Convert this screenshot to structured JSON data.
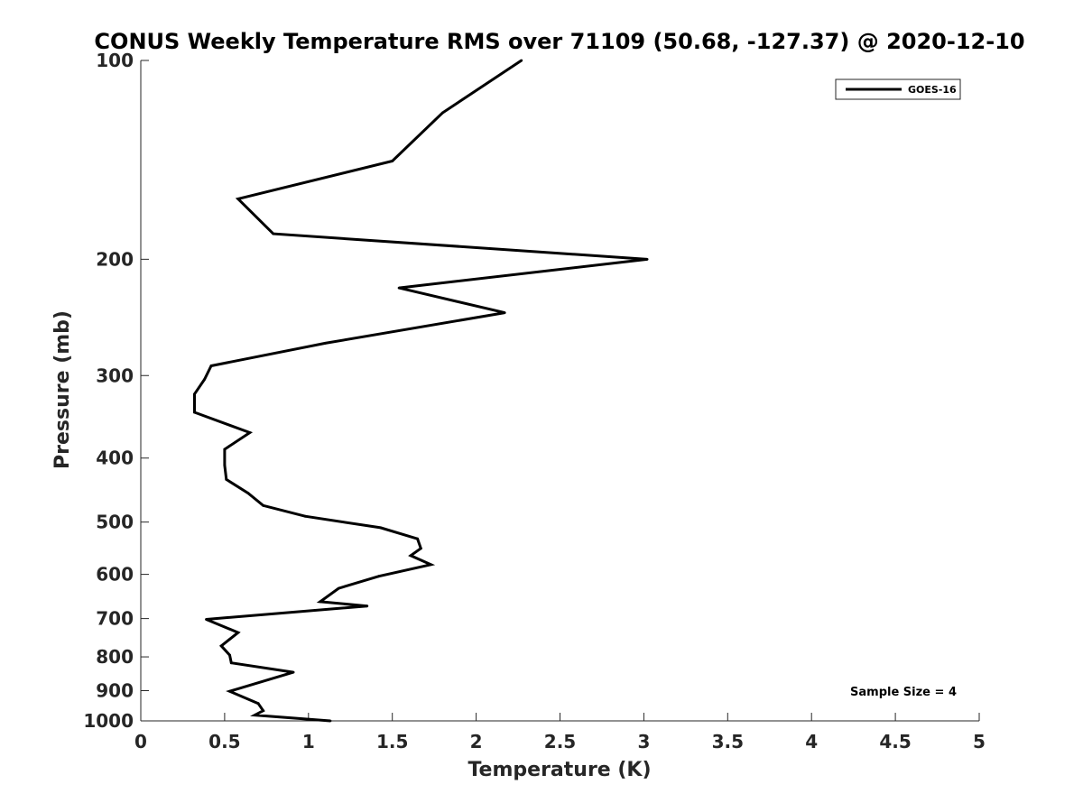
{
  "chart_data": {
    "type": "line",
    "title": "CONUS Weekly Temperature RMS over 71109 (50.68, -127.37) @ 2020-12-10",
    "xlabel": "Temperature (K)",
    "ylabel": "Pressure (mb)",
    "xlim": [
      0,
      5
    ],
    "ylim": [
      1000,
      100
    ],
    "yscale": "log",
    "y_reversed": true,
    "grid": false,
    "legend_position": "top-right",
    "x_ticks": [
      "0",
      "0.5",
      "1",
      "1.5",
      "2",
      "2.5",
      "3",
      "3.5",
      "4",
      "4.5",
      "5"
    ],
    "y_ticks": [
      "100",
      "200",
      "300",
      "400",
      "500",
      "600",
      "700",
      "800",
      "900",
      "1000"
    ],
    "annotation": "Sample Size = 4",
    "series": [
      {
        "name": "GOES-16",
        "color": "#000000",
        "x": [
          2.27,
          1.8,
          1.5,
          0.58,
          0.79,
          3.02,
          1.54,
          2.17,
          1.1,
          0.42,
          0.38,
          0.32,
          0.32,
          0.65,
          0.5,
          0.5,
          0.51,
          0.64,
          0.73,
          0.98,
          1.43,
          1.65,
          1.67,
          1.61,
          1.73,
          1.42,
          1.18,
          1.07,
          1.35,
          0.39,
          0.58,
          0.48,
          0.53,
          0.54,
          0.91,
          0.53,
          0.7,
          0.73,
          0.68,
          1.13
        ],
        "y": [
          100,
          120,
          142,
          162,
          183,
          200,
          221,
          241,
          268,
          290,
          304,
          320,
          341,
          366,
          388,
          410,
          431,
          452,
          472,
          490,
          510,
          530,
          548,
          562,
          580,
          604,
          630,
          660,
          670,
          702,
          735,
          770,
          795,
          817,
          844,
          902,
          941,
          965,
          980,
          1000
        ]
      }
    ]
  }
}
